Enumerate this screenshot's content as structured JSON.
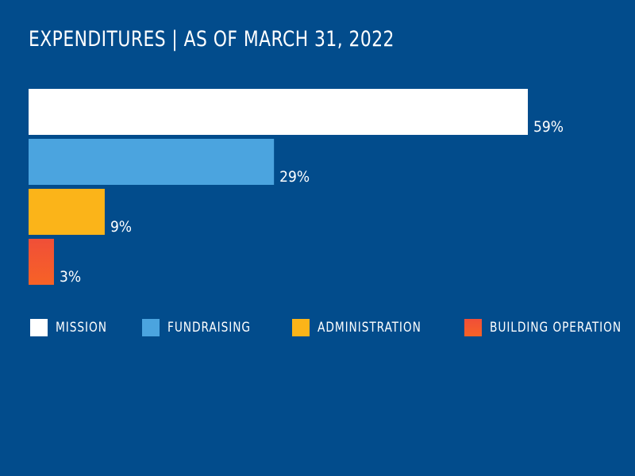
{
  "title": "EXPENDITURES | AS OF MARCH 31, 2022",
  "chart_data": {
    "type": "bar",
    "orientation": "horizontal",
    "categories": [
      "MISSION",
      "FUNDRAISING",
      "ADMINISTRATION",
      "BUILDING OPERATION"
    ],
    "values": [
      59,
      29,
      9,
      3
    ],
    "labels": [
      "59%",
      "29%",
      "9%",
      "3%"
    ],
    "colors": [
      "#ffffff",
      "#4ba4df",
      "#fbb419",
      "#f04f38"
    ],
    "gradient_end": "#f76226",
    "value_unit": "%",
    "legend_position": "bottom",
    "grid": false,
    "title": "EXPENDITURES | AS OF MARCH 31, 2022"
  },
  "legend": [
    {
      "label": "MISSION",
      "color": "#ffffff"
    },
    {
      "label": "FUNDRAISING",
      "color": "#4ba4df"
    },
    {
      "label": "ADMINISTRATION",
      "color": "#fbb419"
    },
    {
      "label": "BUILDING OPERATION",
      "color": "#f04f38"
    }
  ]
}
